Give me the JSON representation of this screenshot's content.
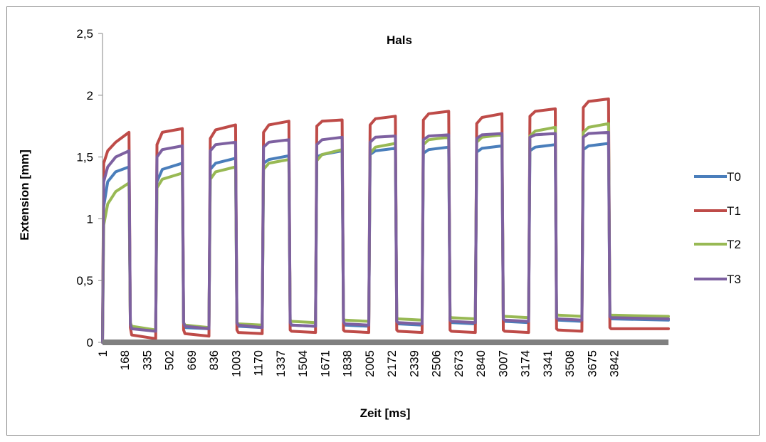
{
  "colors": {
    "T0": "#4a7ebb",
    "T1": "#be4b48",
    "T2": "#98b954",
    "T3": "#7d60a0",
    "x_axis_bar": "#808080"
  },
  "chart_data": {
    "type": "line",
    "title": "Hals",
    "xlabel": "Zeit [ms]",
    "ylabel": "Extension [mm]",
    "ylim": [
      0,
      2.5
    ],
    "yticks": [
      "0",
      "0,5",
      "1",
      "1,5",
      "2",
      "2,5"
    ],
    "ytick_values": [
      0,
      0.5,
      1,
      1.5,
      2,
      2.5
    ],
    "xlim": [
      1,
      4250
    ],
    "xticks": [
      "1",
      "168",
      "335",
      "502",
      "669",
      "836",
      "1003",
      "1170",
      "1337",
      "1504",
      "1671",
      "1838",
      "2005",
      "2172",
      "2339",
      "2506",
      "2673",
      "2840",
      "3007",
      "3174",
      "3341",
      "3508",
      "3675",
      "3842"
    ],
    "grid": false,
    "legend_position": "right",
    "series": [
      {
        "name": "T0",
        "x": [
          1,
          10,
          40,
          100,
          200,
          210,
          220,
          400,
          410,
          450,
          600,
          610,
          620,
          800,
          810,
          850,
          1000,
          1010,
          1020,
          1200,
          1210,
          1250,
          1400,
          1410,
          1420,
          1600,
          1610,
          1650,
          1800,
          1810,
          1820,
          2000,
          2010,
          2050,
          2200,
          2210,
          2220,
          2400,
          2410,
          2450,
          2600,
          2610,
          2620,
          2800,
          2810,
          2850,
          3000,
          3010,
          3020,
          3200,
          3210,
          3250,
          3400,
          3410,
          3420,
          3600,
          3610,
          3650,
          3800,
          3810,
          3820,
          4250
        ],
        "y": [
          0,
          1.1,
          1.3,
          1.38,
          1.42,
          0.15,
          0.12,
          0.09,
          1.3,
          1.4,
          1.45,
          0.15,
          0.12,
          0.11,
          1.4,
          1.45,
          1.49,
          0.15,
          0.13,
          0.12,
          1.45,
          1.48,
          1.51,
          0.16,
          0.14,
          0.13,
          1.5,
          1.52,
          1.55,
          0.16,
          0.14,
          0.13,
          1.52,
          1.55,
          1.57,
          0.17,
          0.15,
          0.14,
          1.53,
          1.56,
          1.58,
          0.18,
          0.16,
          0.15,
          1.54,
          1.57,
          1.59,
          0.18,
          0.17,
          0.16,
          1.55,
          1.58,
          1.6,
          0.19,
          0.18,
          0.17,
          1.56,
          1.59,
          1.61,
          0.2,
          0.19,
          0.18
        ]
      },
      {
        "name": "T1",
        "x": [
          1,
          10,
          40,
          100,
          200,
          210,
          220,
          400,
          410,
          450,
          600,
          610,
          620,
          800,
          810,
          850,
          1000,
          1010,
          1020,
          1200,
          1210,
          1250,
          1400,
          1410,
          1420,
          1600,
          1610,
          1650,
          1800,
          1810,
          1820,
          2000,
          2010,
          2050,
          2200,
          2210,
          2220,
          2400,
          2410,
          2450,
          2600,
          2610,
          2620,
          2800,
          2810,
          2850,
          3000,
          3010,
          3020,
          3200,
          3210,
          3250,
          3400,
          3410,
          3420,
          3600,
          3610,
          3650,
          3800,
          3810,
          3820,
          4250
        ],
        "y": [
          0,
          1.45,
          1.55,
          1.62,
          1.7,
          0.12,
          0.06,
          0.03,
          1.6,
          1.7,
          1.73,
          0.1,
          0.07,
          0.05,
          1.65,
          1.72,
          1.76,
          0.1,
          0.08,
          0.07,
          1.7,
          1.76,
          1.79,
          0.1,
          0.09,
          0.08,
          1.75,
          1.79,
          1.8,
          0.1,
          0.09,
          0.08,
          1.76,
          1.81,
          1.83,
          0.1,
          0.09,
          0.08,
          1.8,
          1.85,
          1.87,
          0.1,
          0.09,
          0.08,
          1.77,
          1.82,
          1.85,
          0.1,
          0.09,
          0.08,
          1.83,
          1.87,
          1.89,
          0.11,
          0.1,
          0.09,
          1.9,
          1.95,
          1.97,
          0.12,
          0.11,
          0.11
        ]
      },
      {
        "name": "T2",
        "x": [
          1,
          10,
          40,
          100,
          200,
          210,
          220,
          400,
          410,
          450,
          600,
          610,
          620,
          800,
          810,
          850,
          1000,
          1010,
          1020,
          1200,
          1210,
          1250,
          1400,
          1410,
          1420,
          1600,
          1610,
          1650,
          1800,
          1810,
          1820,
          2000,
          2010,
          2050,
          2200,
          2210,
          2220,
          2400,
          2410,
          2450,
          2600,
          2610,
          2620,
          2800,
          2810,
          2850,
          3000,
          3010,
          3020,
          3200,
          3210,
          3250,
          3400,
          3410,
          3420,
          3600,
          3610,
          3650,
          3800,
          3810,
          3820,
          4250
        ],
        "y": [
          0,
          0.95,
          1.12,
          1.22,
          1.29,
          0.16,
          0.13,
          0.1,
          1.25,
          1.32,
          1.37,
          0.16,
          0.14,
          0.12,
          1.32,
          1.38,
          1.42,
          0.16,
          0.15,
          0.14,
          1.4,
          1.45,
          1.48,
          0.18,
          0.17,
          0.16,
          1.47,
          1.52,
          1.56,
          0.19,
          0.18,
          0.17,
          1.53,
          1.58,
          1.61,
          0.2,
          0.19,
          0.18,
          1.6,
          1.64,
          1.66,
          0.21,
          0.2,
          0.19,
          1.62,
          1.66,
          1.68,
          0.22,
          0.21,
          0.2,
          1.67,
          1.71,
          1.74,
          0.23,
          0.22,
          0.21,
          1.7,
          1.74,
          1.77,
          0.23,
          0.22,
          0.21
        ]
      },
      {
        "name": "T3",
        "x": [
          1,
          10,
          40,
          100,
          200,
          210,
          220,
          400,
          410,
          450,
          600,
          610,
          620,
          800,
          810,
          850,
          1000,
          1010,
          1020,
          1200,
          1210,
          1250,
          1400,
          1410,
          1420,
          1600,
          1610,
          1650,
          1800,
          1810,
          1820,
          2000,
          2010,
          2050,
          2200,
          2210,
          2220,
          2400,
          2410,
          2450,
          2600,
          2610,
          2620,
          2800,
          2810,
          2850,
          3000,
          3010,
          3020,
          3200,
          3210,
          3250,
          3400,
          3410,
          3420,
          3600,
          3610,
          3650,
          3800,
          3810,
          3820,
          4250
        ],
        "y": [
          0,
          1.3,
          1.42,
          1.5,
          1.55,
          0.15,
          0.11,
          0.09,
          1.5,
          1.56,
          1.59,
          0.16,
          0.13,
          0.11,
          1.55,
          1.6,
          1.62,
          0.16,
          0.14,
          0.12,
          1.58,
          1.62,
          1.64,
          0.16,
          0.14,
          0.13,
          1.6,
          1.64,
          1.66,
          0.17,
          0.15,
          0.14,
          1.62,
          1.66,
          1.67,
          0.17,
          0.16,
          0.15,
          1.64,
          1.67,
          1.68,
          0.18,
          0.17,
          0.16,
          1.65,
          1.68,
          1.69,
          0.19,
          0.18,
          0.17,
          1.66,
          1.68,
          1.69,
          0.2,
          0.19,
          0.18,
          1.66,
          1.69,
          1.7,
          0.21,
          0.2,
          0.19
        ]
      }
    ]
  }
}
